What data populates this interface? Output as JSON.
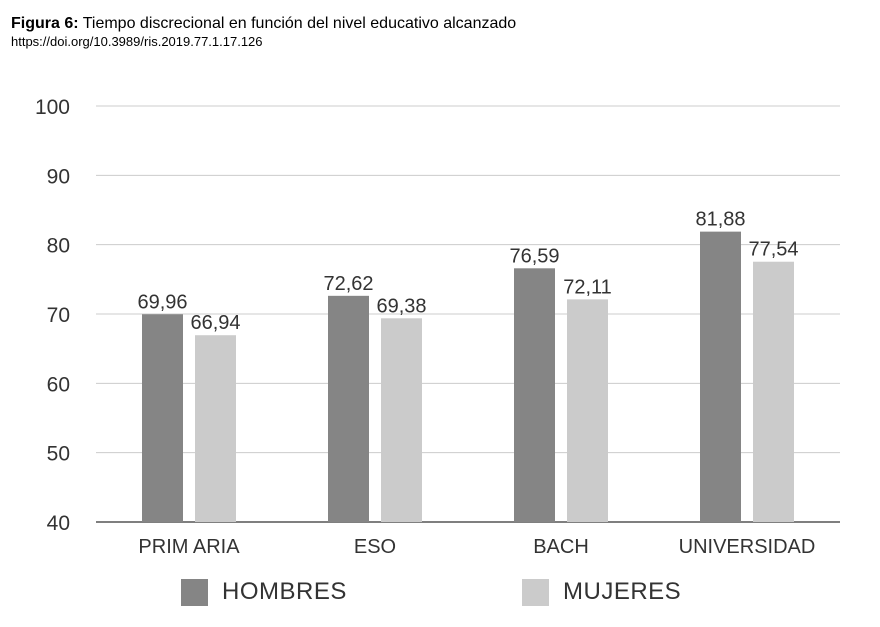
{
  "figure": {
    "label": "Figura 6:",
    "title": "Tiempo discrecional en función del nivel educativo alcanzado",
    "doi": "https://doi.org/10.3989/ris.2019.77.1.17.126"
  },
  "colors": {
    "hombres": "#858585",
    "mujeres": "#cbcbcb",
    "grid": "#cccccc",
    "axis": "#555555",
    "text": "#333333"
  },
  "chart_data": {
    "type": "bar",
    "title": "",
    "xlabel": "",
    "ylabel": "",
    "categories": [
      "PRIM ARIA",
      "ESO",
      "BACH",
      "UNIVERSIDAD"
    ],
    "series": [
      {
        "name": "HOMBRES",
        "values": [
          69.96,
          72.62,
          76.59,
          81.88
        ],
        "labels": [
          "69,96",
          "72,62",
          "76,59",
          "81,88"
        ]
      },
      {
        "name": "MUJERES",
        "values": [
          66.94,
          69.38,
          72.11,
          77.54
        ],
        "labels": [
          "66,94",
          "69,38",
          "72,11",
          "77,54"
        ]
      }
    ],
    "ylim": [
      40,
      100
    ],
    "yticks": [
      40,
      50,
      60,
      70,
      80,
      90,
      100
    ],
    "grid": true,
    "legend_position": "bottom"
  }
}
